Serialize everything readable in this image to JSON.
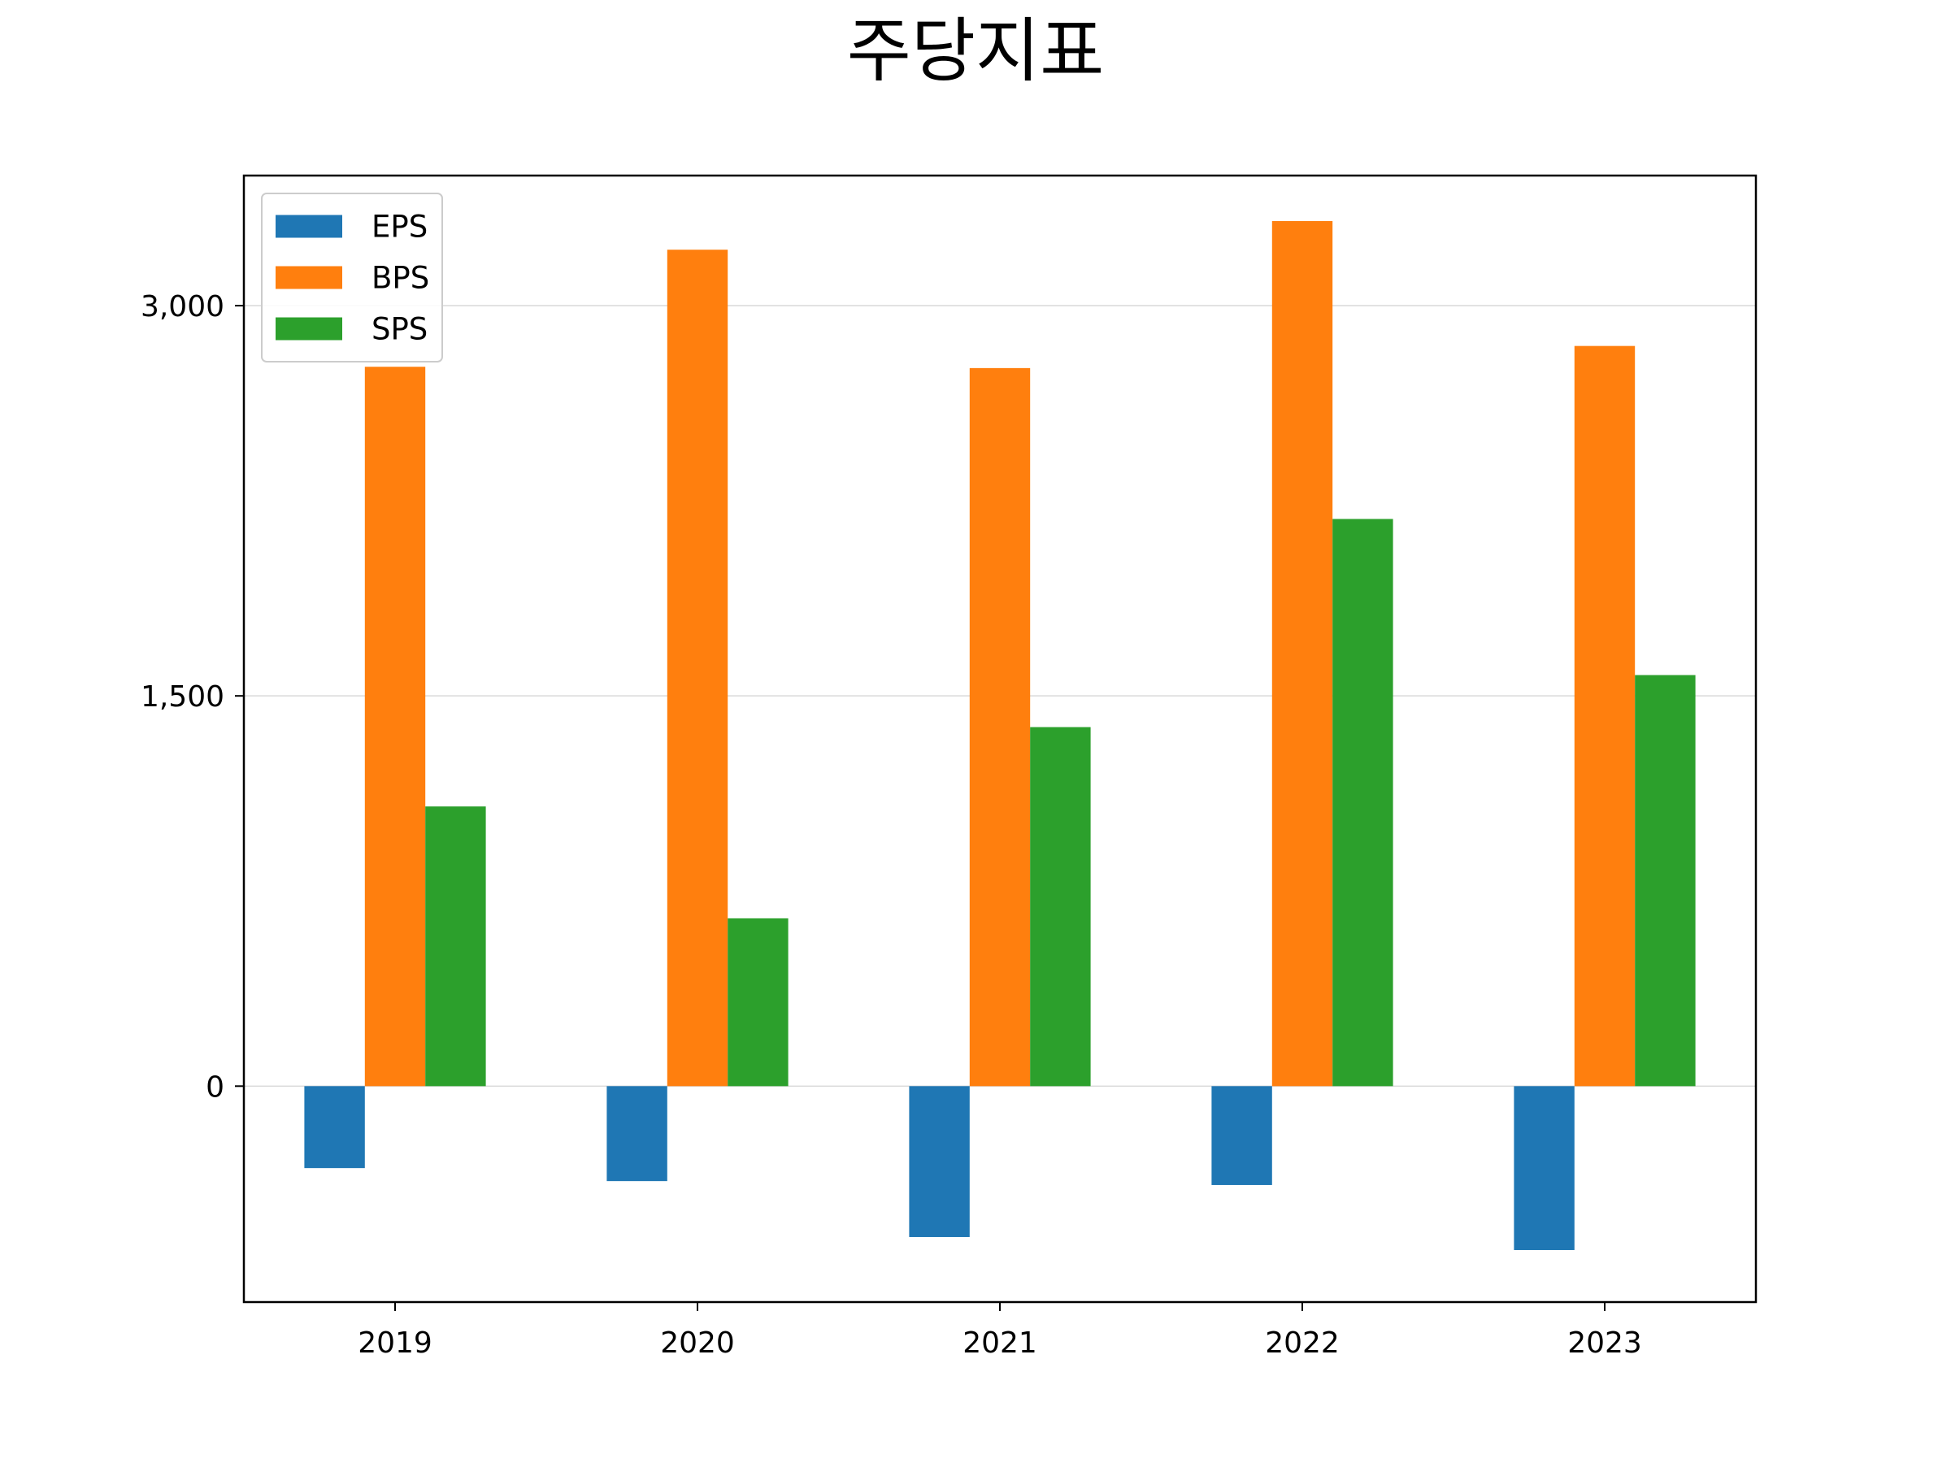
{
  "chart_data": {
    "type": "bar",
    "title": "주당지표",
    "xlabel": "",
    "ylabel": "",
    "categories": [
      "2019",
      "2020",
      "2021",
      "2022",
      "2023"
    ],
    "series": [
      {
        "name": "EPS",
        "color": "#1f77b4",
        "values": [
          -315,
          -365,
          -580,
          -380,
          -630
        ]
      },
      {
        "name": "BPS",
        "color": "#ff7f0e",
        "values": [
          2765,
          3215,
          2760,
          3325,
          2845
        ]
      },
      {
        "name": "SPS",
        "color": "#2ca02c",
        "values": [
          1075,
          645,
          1380,
          2180,
          1580
        ]
      }
    ],
    "ylim": [
      -830,
      3500
    ],
    "yticks": [
      0,
      1500,
      3000
    ],
    "ytick_labels": [
      "0",
      "1,500",
      "3,000"
    ],
    "grid": "y",
    "legend_position": "top-left"
  }
}
